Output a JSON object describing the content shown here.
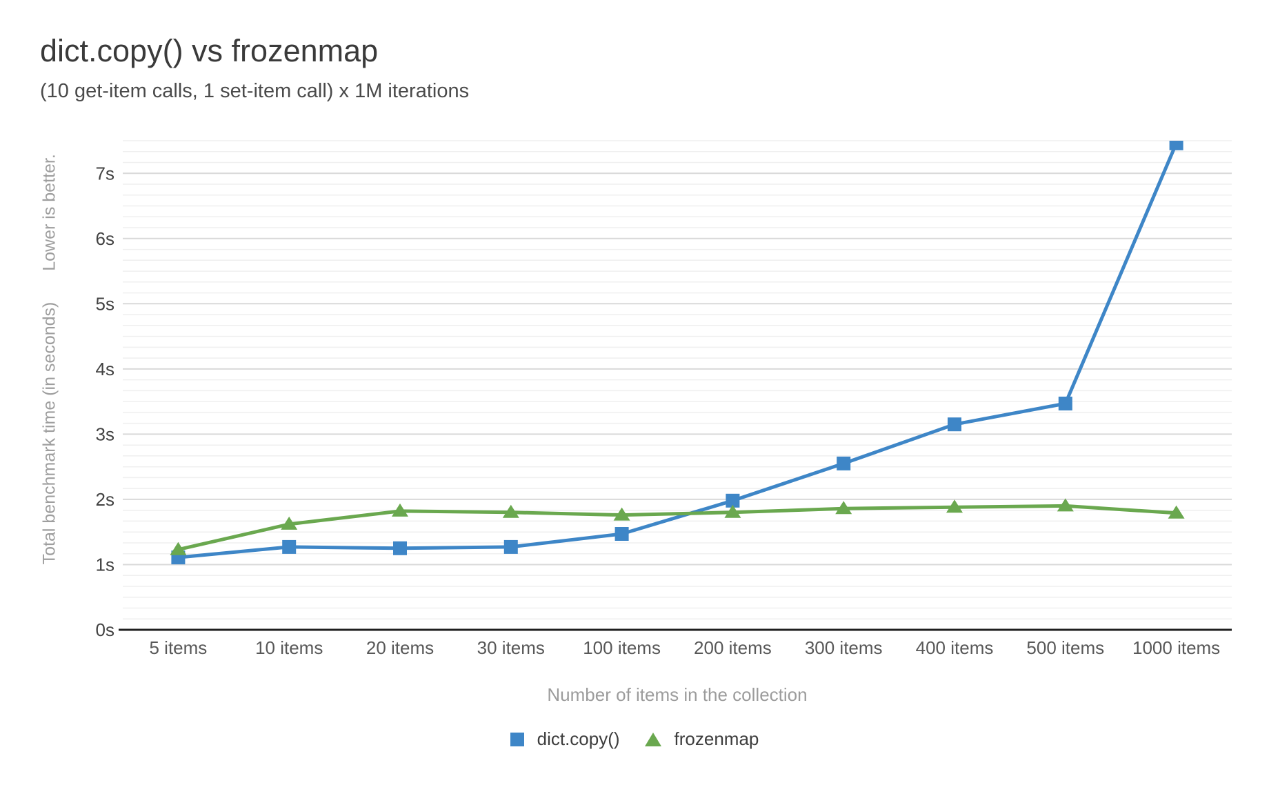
{
  "chart_data": {
    "type": "line",
    "title": "dict.copy() vs frozenmap",
    "subtitle": "(10 get-item calls, 1 set-item call) x 1M iterations",
    "xlabel": "Number of items in the collection",
    "ylabel": "Total benchmark time (in seconds)",
    "ylabel_note": "Lower is better.",
    "categories": [
      "5 items",
      "10 items",
      "20 items",
      "30 items",
      "100 items",
      "200 items",
      "300 items",
      "400 items",
      "500 items",
      "1000 items"
    ],
    "series": [
      {
        "name": "dict.copy()",
        "color": "#3e86c7",
        "marker": "square",
        "values": [
          1.11,
          1.27,
          1.25,
          1.27,
          1.47,
          1.98,
          2.55,
          3.15,
          3.47,
          7.46
        ]
      },
      {
        "name": "frozenmap",
        "color": "#6aa84f",
        "marker": "triangle",
        "values": [
          1.23,
          1.62,
          1.82,
          1.8,
          1.76,
          1.8,
          1.86,
          1.88,
          1.9,
          1.79
        ]
      }
    ],
    "ytick_labels": [
      "0s",
      "1s",
      "2s",
      "3s",
      "4s",
      "5s",
      "6s",
      "7s"
    ],
    "ylim": [
      0,
      7.5
    ],
    "y_major_step": 1,
    "y_minor_per_major": 6,
    "grid": true,
    "legend_position": "bottom",
    "grid_colors": {
      "major": "#d9d9d9",
      "minor": "#efefef",
      "baseline": "#1f1f1f"
    },
    "tick_label_colors": {
      "y": "#424242",
      "x": "#585858"
    }
  }
}
